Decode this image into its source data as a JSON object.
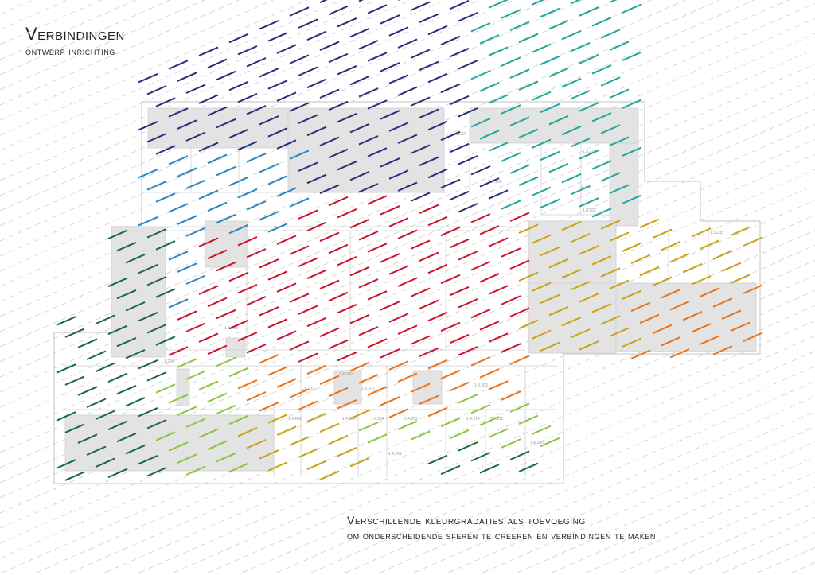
{
  "header": {
    "title": "Verbindingen",
    "subtitle": "ontwerp inrichting"
  },
  "caption": {
    "line1": "Verschillende kleurgradaties als toevoeging",
    "line2": "om onderscheidende sferen te creeren en verbindingen te maken"
  },
  "zones": [
    {
      "name": "navy",
      "color": "#2b2f7a"
    },
    {
      "name": "blue",
      "color": "#2a86c0"
    },
    {
      "name": "teal",
      "color": "#1ea79a"
    },
    {
      "name": "red",
      "color": "#c8142e"
    },
    {
      "name": "dark-green",
      "color": "#1b6a3c"
    },
    {
      "name": "yellow",
      "color": "#c8a312"
    },
    {
      "name": "orange",
      "color": "#e8731c"
    },
    {
      "name": "light-green",
      "color": "#8cc63f"
    }
  ],
  "palette": {
    "room_fill": "#e3e3e3",
    "plan_line": "#c9c9c9",
    "guide_line": "#c8c8c8"
  }
}
